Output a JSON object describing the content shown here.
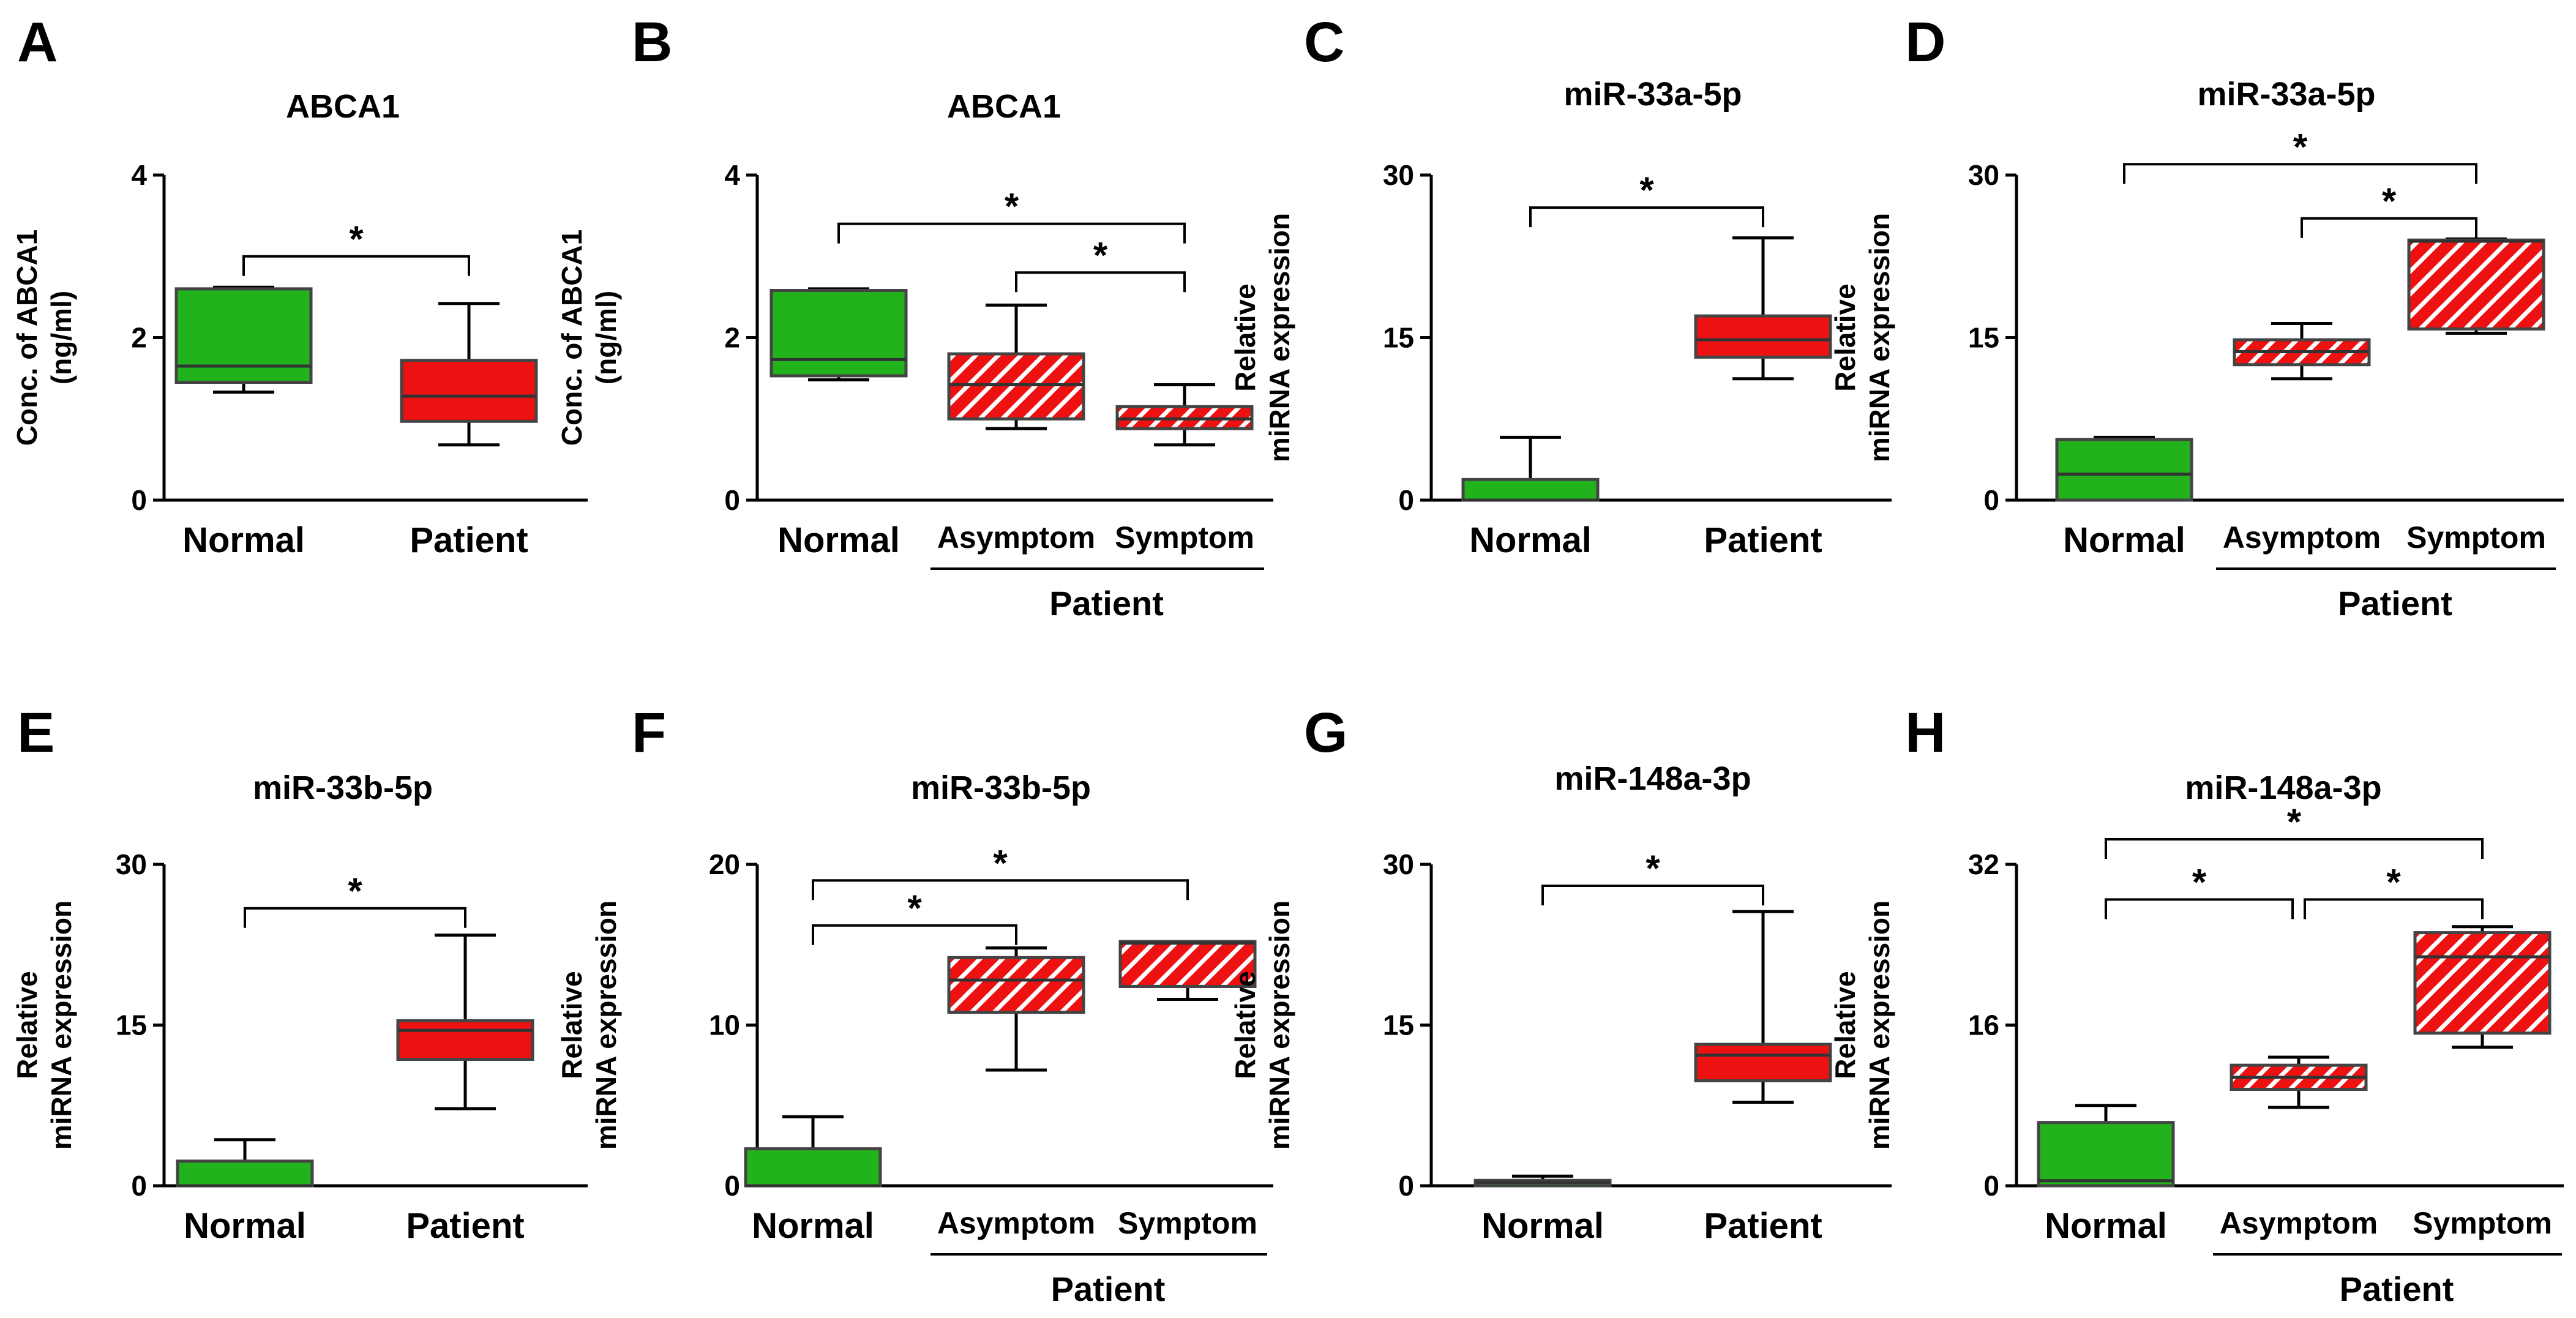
{
  "colors": {
    "normal": "#22b21c",
    "patient": "#ee1111",
    "hatch_stripe": "#ffffff",
    "outline": "#444444"
  },
  "chart_data": [
    {
      "panel": "A",
      "type": "boxplot",
      "title": "ABCA1",
      "ylabel": "Conc. of ABCA1 (ng/ml)",
      "ylabel_lines": [
        "Conc. of ABCA1",
        "(ng/ml)"
      ],
      "ylim": [
        0,
        4
      ],
      "yticks": [
        0,
        2,
        4
      ],
      "tick_labels": [
        "0",
        "2",
        "4"
      ],
      "categories": [
        "Normal",
        "Patient"
      ],
      "boxes": [
        {
          "category": "Normal",
          "whisker_low": 1.33,
          "q1": 1.45,
          "median": 1.65,
          "q3": 2.6,
          "whisker_high": 2.62,
          "fill": "normal",
          "hatched": false
        },
        {
          "category": "Patient",
          "whisker_low": 0.68,
          "q1": 0.97,
          "median": 1.28,
          "q3": 1.72,
          "whisker_high": 2.42,
          "fill": "patient",
          "hatched": false
        }
      ],
      "significance": [
        {
          "from": 0,
          "to": 1,
          "label": "*",
          "y": 3.0
        }
      ]
    },
    {
      "panel": "B",
      "type": "boxplot",
      "title": "ABCA1",
      "ylabel": "Conc. of ABCA1 (ng/ml)",
      "ylabel_lines": [
        "Conc. of ABCA1",
        "(ng/ml)"
      ],
      "ylim": [
        0,
        4
      ],
      "yticks": [
        0,
        2,
        4
      ],
      "tick_labels": [
        "0",
        "2",
        "4"
      ],
      "categories": [
        "Normal",
        "Asymptom",
        "Symptom"
      ],
      "group_label": "Patient",
      "boxes": [
        {
          "category": "Normal",
          "whisker_low": 1.48,
          "q1": 1.53,
          "median": 1.73,
          "q3": 2.58,
          "whisker_high": 2.6,
          "fill": "normal",
          "hatched": false
        },
        {
          "category": "Asymptom",
          "whisker_low": 0.88,
          "q1": 1.0,
          "median": 1.42,
          "q3": 1.8,
          "whisker_high": 2.4,
          "fill": "patient",
          "hatched": true
        },
        {
          "category": "Symptom",
          "whisker_low": 0.68,
          "q1": 0.88,
          "median": 1.0,
          "q3": 1.15,
          "whisker_high": 1.42,
          "fill": "patient",
          "hatched": true
        }
      ],
      "significance": [
        {
          "from": 0,
          "to": 2,
          "label": "*",
          "y": 3.4
        },
        {
          "from": 1,
          "to": 2,
          "label": "*",
          "y": 2.8
        }
      ]
    },
    {
      "panel": "C",
      "type": "boxplot",
      "title": "miR-33a-5p",
      "ylabel": "Relative miRNA expression",
      "ylabel_lines": [
        "Relative",
        "miRNA expression"
      ],
      "ylim": [
        0,
        30
      ],
      "yticks": [
        0,
        15,
        30
      ],
      "tick_labels": [
        "0",
        "15",
        "30"
      ],
      "categories": [
        "Normal",
        "Patient"
      ],
      "boxes": [
        {
          "category": "Normal",
          "whisker_low": 0.0,
          "q1": 0.0,
          "median": 0.0,
          "q3": 1.9,
          "whisker_high": 5.8,
          "fill": "normal",
          "hatched": false
        },
        {
          "category": "Patient",
          "whisker_low": 11.2,
          "q1": 13.2,
          "median": 14.8,
          "q3": 17.0,
          "whisker_high": 24.2,
          "fill": "patient",
          "hatched": false
        }
      ],
      "significance": [
        {
          "from": 0,
          "to": 1,
          "label": "*",
          "y": 27.0
        }
      ]
    },
    {
      "panel": "D",
      "type": "boxplot",
      "title": "miR-33a-5p",
      "ylabel": "Relative miRNA expression",
      "ylabel_lines": [
        "Relative",
        "miRNA expression"
      ],
      "ylim": [
        0,
        30
      ],
      "yticks": [
        0,
        15,
        30
      ],
      "tick_labels": [
        "0",
        "15",
        "30"
      ],
      "categories": [
        "Normal",
        "Asymptom",
        "Symptom"
      ],
      "group_label": "Patient",
      "boxes": [
        {
          "category": "Normal",
          "whisker_low": 0.0,
          "q1": 0.0,
          "median": 2.4,
          "q3": 5.6,
          "whisker_high": 5.8,
          "fill": "normal",
          "hatched": false
        },
        {
          "category": "Asymptom",
          "whisker_low": 11.2,
          "q1": 12.5,
          "median": 13.7,
          "q3": 14.8,
          "whisker_high": 16.3,
          "fill": "patient",
          "hatched": true
        },
        {
          "category": "Symptom",
          "whisker_low": 15.4,
          "q1": 15.8,
          "median": 23.9,
          "q3": 24.0,
          "whisker_high": 24.1,
          "fill": "patient",
          "hatched": true
        }
      ],
      "significance": [
        {
          "from": 0,
          "to": 2,
          "label": "*",
          "y": 31.0
        },
        {
          "from": 1,
          "to": 2,
          "label": "*",
          "y": 26.0
        }
      ]
    },
    {
      "panel": "E",
      "type": "boxplot",
      "title": "miR-33b-5p",
      "ylabel": "Relative miRNA expression",
      "ylabel_lines": [
        "Relative",
        "miRNA expression"
      ],
      "ylim": [
        0,
        30
      ],
      "yticks": [
        0,
        15,
        30
      ],
      "tick_labels": [
        "0",
        "15",
        "30"
      ],
      "categories": [
        "Normal",
        "Patient"
      ],
      "boxes": [
        {
          "category": "Normal",
          "whisker_low": 0.0,
          "q1": 0.0,
          "median": 0.0,
          "q3": 2.3,
          "whisker_high": 4.3,
          "fill": "normal",
          "hatched": false
        },
        {
          "category": "Patient",
          "whisker_low": 7.2,
          "q1": 11.8,
          "median": 14.5,
          "q3": 15.4,
          "whisker_high": 23.4,
          "fill": "patient",
          "hatched": false
        }
      ],
      "significance": [
        {
          "from": 0,
          "to": 1,
          "label": "*",
          "y": 25.9
        }
      ]
    },
    {
      "panel": "F",
      "type": "boxplot",
      "title": "miR-33b-5p",
      "ylabel": "Relative miRNA expression",
      "ylabel_lines": [
        "Relative",
        "miRNA expression"
      ],
      "ylim": [
        0,
        20
      ],
      "yticks": [
        0,
        10,
        20
      ],
      "tick_labels": [
        "0",
        "10",
        "20"
      ],
      "categories": [
        "Normal",
        "Asymptom",
        "Symptom"
      ],
      "group_label": "Patient",
      "boxes": [
        {
          "category": "Normal",
          "whisker_low": 0.0,
          "q1": 0.0,
          "median": 0.0,
          "q3": 2.3,
          "whisker_high": 4.3,
          "fill": "normal",
          "hatched": false
        },
        {
          "category": "Asymptom",
          "whisker_low": 7.2,
          "q1": 10.8,
          "median": 12.8,
          "q3": 14.2,
          "whisker_high": 14.8,
          "fill": "patient",
          "hatched": true
        },
        {
          "category": "Symptom",
          "whisker_low": 11.6,
          "q1": 12.4,
          "median": 15.1,
          "q3": 15.2,
          "whisker_high": 15.2,
          "fill": "patient",
          "hatched": true
        }
      ],
      "significance": [
        {
          "from": 0,
          "to": 2,
          "label": "*",
          "y": 19.0
        },
        {
          "from": 0,
          "to": 1,
          "label": "*",
          "y": 16.2
        }
      ]
    },
    {
      "panel": "G",
      "type": "boxplot",
      "title": "miR-148a-3p",
      "ylabel": "Relative miRNA expression",
      "ylabel_lines": [
        "Relative",
        "miRNA expression"
      ],
      "ylim": [
        0,
        30
      ],
      "yticks": [
        0,
        15,
        30
      ],
      "tick_labels": [
        "0",
        "15",
        "30"
      ],
      "categories": [
        "Normal",
        "Patient"
      ],
      "boxes": [
        {
          "category": "Normal",
          "whisker_low": 0.0,
          "q1": 0.0,
          "median": 0.3,
          "q3": 0.5,
          "whisker_high": 0.9,
          "fill": "normal",
          "hatched": false
        },
        {
          "category": "Patient",
          "whisker_low": 7.8,
          "q1": 9.8,
          "median": 12.2,
          "q3": 13.2,
          "whisker_high": 25.6,
          "fill": "patient",
          "hatched": false
        }
      ],
      "significance": [
        {
          "from": 0,
          "to": 1,
          "label": "*",
          "y": 28.0
        }
      ]
    },
    {
      "panel": "H",
      "type": "boxplot",
      "title": "miR-148a-3p",
      "ylabel": "Relative miRNA expression",
      "ylabel_lines": [
        "Relative",
        "miRNA expression"
      ],
      "ylim": [
        0,
        32
      ],
      "yticks": [
        0,
        16,
        32
      ],
      "tick_labels": [
        "0",
        "16",
        "32"
      ],
      "categories": [
        "Normal",
        "Asymptom",
        "Symptom"
      ],
      "group_label": "Patient",
      "boxes": [
        {
          "category": "Normal",
          "whisker_low": 0.0,
          "q1": 0.0,
          "median": 0.5,
          "q3": 6.3,
          "whisker_high": 8.0,
          "fill": "normal",
          "hatched": false
        },
        {
          "category": "Asymptom",
          "whisker_low": 7.8,
          "q1": 9.6,
          "median": 10.8,
          "q3": 12.0,
          "whisker_high": 12.8,
          "fill": "patient",
          "hatched": true
        },
        {
          "category": "Symptom",
          "whisker_low": 13.8,
          "q1": 15.2,
          "median": 22.8,
          "q3": 25.2,
          "whisker_high": 25.8,
          "fill": "patient",
          "hatched": true
        }
      ],
      "significance": [
        {
          "from": 0,
          "to": 2,
          "label": "*",
          "y": 34.5
        },
        {
          "from": 0,
          "to": 1,
          "label": "*",
          "y": 28.5
        },
        {
          "from": 1,
          "to": 2,
          "label": "*",
          "y": 28.5
        }
      ]
    }
  ]
}
